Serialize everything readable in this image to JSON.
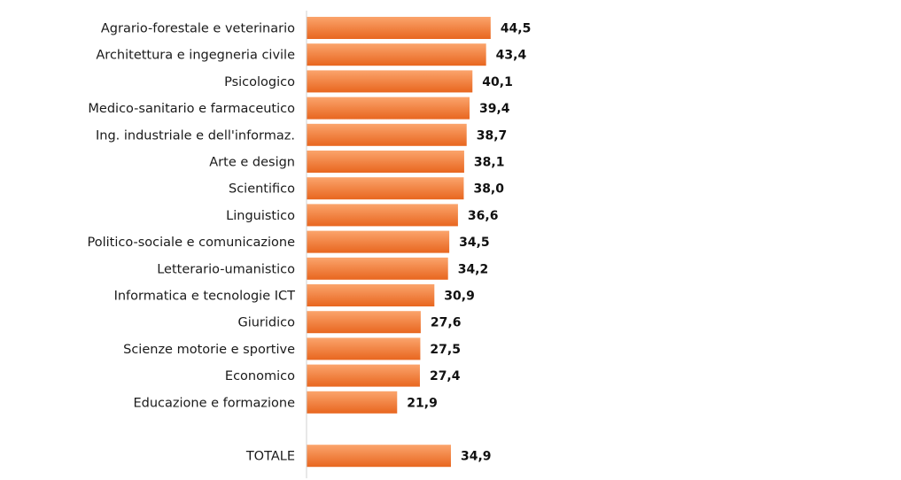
{
  "chart_data": {
    "type": "bar",
    "orientation": "horizontal",
    "title": "",
    "xlabel": "",
    "ylabel": "",
    "grid": false,
    "legend": "none",
    "xlim": [
      0,
      100
    ],
    "categories": [
      "Agrario-forestale e veterinario",
      "Architettura e ingegneria civile",
      "Psicologico",
      "Medico-sanitario e farmaceutico",
      "Ing. industriale e dell'informaz.",
      "Arte e design",
      "Scientifico",
      "Linguistico",
      "Politico-sociale e comunicazione",
      "Letterario-umanistico",
      "Informatica e tecnologie ICT",
      "Giuridico",
      "Scienze motorie e sportive",
      "Economico",
      "Educazione e formazione",
      "TOTALE"
    ],
    "values": [
      44.5,
      43.4,
      40.1,
      39.4,
      38.7,
      38.1,
      38.0,
      36.6,
      34.5,
      34.2,
      30.9,
      27.6,
      27.5,
      27.4,
      21.9,
      34.9
    ],
    "value_labels": [
      "44,5",
      "43,4",
      "40,1",
      "39,4",
      "38,7",
      "38,1",
      "38,0",
      "36,6",
      "34,5",
      "34,2",
      "30,9",
      "27,6",
      "27,5",
      "27,4",
      "21,9",
      "34,9"
    ],
    "colors": {
      "bar_light": "#fba46c",
      "bar_dark": "#e8661f",
      "axis": "#d0d0d0"
    }
  }
}
